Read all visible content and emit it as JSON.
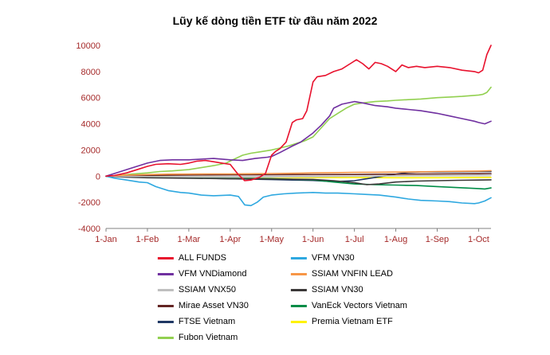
{
  "chart_data": {
    "type": "line",
    "title": "Lũy kế dòng tiền ETF từ đầu năm 2022",
    "xlabel": "",
    "ylabel": "",
    "x_range": [
      0,
      9.3
    ],
    "ylim": [
      -4000,
      10000
    ],
    "y_ticks": [
      -4000,
      -2000,
      0,
      2000,
      4000,
      6000,
      8000,
      10000
    ],
    "x_tick_positions": [
      0,
      1,
      2,
      3,
      4,
      5,
      6,
      7,
      8,
      9
    ],
    "x_tick_labels": [
      "1-Jan",
      "1-Feb",
      "1-Mar",
      "1-Apr",
      "1-May",
      "1-Jun",
      "1-Jul",
      "1-Aug",
      "1-Sep",
      "1-Oct"
    ],
    "grid": false,
    "legend_position": "bottom",
    "series": [
      {
        "name": "ALL FUNDS",
        "color": "#E8112D",
        "points": [
          [
            0,
            0
          ],
          [
            0.2,
            50
          ],
          [
            0.5,
            250
          ],
          [
            0.8,
            550
          ],
          [
            1,
            750
          ],
          [
            1.2,
            900
          ],
          [
            1.5,
            950
          ],
          [
            1.8,
            900
          ],
          [
            2,
            1000
          ],
          [
            2.2,
            1150
          ],
          [
            2.4,
            1200
          ],
          [
            2.6,
            1100
          ],
          [
            2.8,
            1000
          ],
          [
            3,
            900
          ],
          [
            3.1,
            500
          ],
          [
            3.2,
            100
          ],
          [
            3.35,
            -350
          ],
          [
            3.5,
            -300
          ],
          [
            3.7,
            -100
          ],
          [
            3.85,
            200
          ],
          [
            4,
            1600
          ],
          [
            4.1,
            1900
          ],
          [
            4.2,
            2100
          ],
          [
            4.35,
            2600
          ],
          [
            4.5,
            4100
          ],
          [
            4.6,
            4300
          ],
          [
            4.75,
            4400
          ],
          [
            4.85,
            5000
          ],
          [
            5,
            7200
          ],
          [
            5.1,
            7600
          ],
          [
            5.3,
            7700
          ],
          [
            5.5,
            8000
          ],
          [
            5.7,
            8200
          ],
          [
            5.9,
            8600
          ],
          [
            6.05,
            8900
          ],
          [
            6.2,
            8600
          ],
          [
            6.35,
            8200
          ],
          [
            6.5,
            8700
          ],
          [
            6.65,
            8600
          ],
          [
            6.8,
            8400
          ],
          [
            7,
            8000
          ],
          [
            7.15,
            8500
          ],
          [
            7.3,
            8300
          ],
          [
            7.5,
            8400
          ],
          [
            7.7,
            8300
          ],
          [
            8,
            8400
          ],
          [
            8.3,
            8300
          ],
          [
            8.6,
            8100
          ],
          [
            8.9,
            8000
          ],
          [
            9,
            7900
          ],
          [
            9.1,
            8100
          ],
          [
            9.2,
            9300
          ],
          [
            9.3,
            10000
          ]
        ]
      },
      {
        "name": "VFM VN30",
        "color": "#2EA8E0",
        "points": [
          [
            0,
            0
          ],
          [
            0.2,
            -150
          ],
          [
            0.5,
            -300
          ],
          [
            0.8,
            -450
          ],
          [
            1,
            -500
          ],
          [
            1.2,
            -800
          ],
          [
            1.5,
            -1100
          ],
          [
            1.8,
            -1250
          ],
          [
            2,
            -1300
          ],
          [
            2.3,
            -1450
          ],
          [
            2.6,
            -1500
          ],
          [
            3,
            -1450
          ],
          [
            3.2,
            -1550
          ],
          [
            3.35,
            -2200
          ],
          [
            3.5,
            -2250
          ],
          [
            3.65,
            -2000
          ],
          [
            3.8,
            -1600
          ],
          [
            4,
            -1450
          ],
          [
            4.3,
            -1350
          ],
          [
            4.6,
            -1300
          ],
          [
            5,
            -1250
          ],
          [
            5.3,
            -1300
          ],
          [
            5.6,
            -1300
          ],
          [
            6,
            -1350
          ],
          [
            6.3,
            -1400
          ],
          [
            6.6,
            -1450
          ],
          [
            7,
            -1600
          ],
          [
            7.3,
            -1750
          ],
          [
            7.6,
            -1850
          ],
          [
            8,
            -1900
          ],
          [
            8.3,
            -1950
          ],
          [
            8.6,
            -2050
          ],
          [
            8.9,
            -2100
          ],
          [
            9,
            -2050
          ],
          [
            9.15,
            -1900
          ],
          [
            9.3,
            -1650
          ]
        ]
      },
      {
        "name": "VFM VNDiamond",
        "color": "#7030A0",
        "points": [
          [
            0,
            0
          ],
          [
            0.3,
            300
          ],
          [
            0.6,
            600
          ],
          [
            1,
            1000
          ],
          [
            1.3,
            1200
          ],
          [
            1.6,
            1250
          ],
          [
            2,
            1250
          ],
          [
            2.3,
            1300
          ],
          [
            2.6,
            1350
          ],
          [
            3,
            1250
          ],
          [
            3.3,
            1200
          ],
          [
            3.6,
            1350
          ],
          [
            3.9,
            1450
          ],
          [
            4,
            1500
          ],
          [
            4.2,
            1800
          ],
          [
            4.5,
            2300
          ],
          [
            4.7,
            2600
          ],
          [
            5,
            3300
          ],
          [
            5.2,
            3900
          ],
          [
            5.4,
            4600
          ],
          [
            5.5,
            5200
          ],
          [
            5.7,
            5500
          ],
          [
            6,
            5700
          ],
          [
            6.2,
            5600
          ],
          [
            6.5,
            5400
          ],
          [
            6.8,
            5300
          ],
          [
            7,
            5200
          ],
          [
            7.3,
            5100
          ],
          [
            7.6,
            5000
          ],
          [
            8,
            4800
          ],
          [
            8.3,
            4600
          ],
          [
            8.6,
            4400
          ],
          [
            8.9,
            4200
          ],
          [
            9,
            4100
          ],
          [
            9.15,
            4000
          ],
          [
            9.3,
            4200
          ]
        ]
      },
      {
        "name": "SSIAM VNFIN LEAD",
        "color": "#F79646",
        "points": [
          [
            0,
            0
          ],
          [
            0.5,
            80
          ],
          [
            1,
            120
          ],
          [
            1.5,
            150
          ],
          [
            2,
            160
          ],
          [
            2.5,
            170
          ],
          [
            3,
            170
          ],
          [
            3.5,
            180
          ],
          [
            4,
            200
          ],
          [
            4.5,
            220
          ],
          [
            5,
            250
          ],
          [
            5.5,
            270
          ],
          [
            6,
            290
          ],
          [
            6.5,
            300
          ],
          [
            7,
            310
          ],
          [
            7.5,
            330
          ],
          [
            8,
            350
          ],
          [
            8.5,
            370
          ],
          [
            9,
            390
          ],
          [
            9.3,
            420
          ]
        ]
      },
      {
        "name": "SSIAM VNX50",
        "color": "#BFBFBF",
        "points": [
          [
            0,
            0
          ],
          [
            1,
            -30
          ],
          [
            2,
            -60
          ],
          [
            3,
            -80
          ],
          [
            4,
            -70
          ],
          [
            5,
            -40
          ],
          [
            6,
            -10
          ],
          [
            7,
            30
          ],
          [
            8,
            60
          ],
          [
            9,
            90
          ],
          [
            9.3,
            100
          ]
        ]
      },
      {
        "name": "SSIAM VN30",
        "color": "#3B3838",
        "points": [
          [
            0,
            0
          ],
          [
            0.5,
            -80
          ],
          [
            1,
            -120
          ],
          [
            2,
            -160
          ],
          [
            3,
            -200
          ],
          [
            4,
            -220
          ],
          [
            5,
            -250
          ],
          [
            5.5,
            -350
          ],
          [
            6,
            -500
          ],
          [
            6.3,
            -650
          ],
          [
            6.6,
            -600
          ],
          [
            7,
            -450
          ],
          [
            7.5,
            -380
          ],
          [
            8,
            -350
          ],
          [
            8.5,
            -320
          ],
          [
            9,
            -300
          ],
          [
            9.3,
            -280
          ]
        ]
      },
      {
        "name": "Mirae Asset VN30",
        "color": "#632423",
        "points": [
          [
            0,
            0
          ],
          [
            1,
            60
          ],
          [
            2,
            90
          ],
          [
            3,
            100
          ],
          [
            4,
            110
          ],
          [
            5,
            120
          ],
          [
            6,
            130
          ],
          [
            7,
            150
          ],
          [
            8,
            170
          ],
          [
            9,
            190
          ],
          [
            9.3,
            200
          ]
        ]
      },
      {
        "name": "VanEck Vectors Vietnam",
        "color": "#008C46",
        "points": [
          [
            0,
            0
          ],
          [
            1,
            -60
          ],
          [
            2,
            -120
          ],
          [
            3,
            -160
          ],
          [
            4,
            -200
          ],
          [
            5,
            -280
          ],
          [
            5.5,
            -450
          ],
          [
            6,
            -600
          ],
          [
            6.5,
            -650
          ],
          [
            7,
            -680
          ],
          [
            7.5,
            -720
          ],
          [
            8,
            -800
          ],
          [
            8.5,
            -880
          ],
          [
            9,
            -950
          ],
          [
            9.15,
            -980
          ],
          [
            9.3,
            -900
          ]
        ]
      },
      {
        "name": "FTSE Vietnam",
        "color": "#1F3864",
        "points": [
          [
            0,
            0
          ],
          [
            0.5,
            -50
          ],
          [
            1,
            -80
          ],
          [
            2,
            -130
          ],
          [
            3,
            -200
          ],
          [
            4,
            -260
          ],
          [
            4.5,
            -300
          ],
          [
            5,
            -330
          ],
          [
            5.5,
            -420
          ],
          [
            6,
            -350
          ],
          [
            6.3,
            -200
          ],
          [
            6.6,
            -50
          ],
          [
            7,
            150
          ],
          [
            7.3,
            280
          ],
          [
            7.6,
            320
          ],
          [
            8,
            330
          ],
          [
            8.5,
            340
          ],
          [
            9,
            350
          ],
          [
            9.3,
            360
          ]
        ]
      },
      {
        "name": "Premia Vietnam ETF",
        "color": "#FFF200",
        "points": [
          [
            0,
            0
          ],
          [
            1,
            -40
          ],
          [
            2,
            -70
          ],
          [
            3,
            -90
          ],
          [
            4,
            -100
          ],
          [
            5,
            -110
          ],
          [
            6,
            -110
          ],
          [
            7,
            -120
          ],
          [
            8,
            -120
          ],
          [
            9,
            -110
          ],
          [
            9.3,
            -100
          ]
        ]
      },
      {
        "name": "Fubon Vietnam",
        "color": "#92D050",
        "points": [
          [
            0,
            0
          ],
          [
            0.3,
            50
          ],
          [
            0.6,
            150
          ],
          [
            1,
            250
          ],
          [
            1.3,
            350
          ],
          [
            1.6,
            400
          ],
          [
            2,
            500
          ],
          [
            2.3,
            650
          ],
          [
            2.6,
            800
          ],
          [
            2.9,
            1000
          ],
          [
            3.1,
            1300
          ],
          [
            3.3,
            1600
          ],
          [
            3.5,
            1750
          ],
          [
            3.7,
            1850
          ],
          [
            4,
            2000
          ],
          [
            4.2,
            2150
          ],
          [
            4.4,
            2300
          ],
          [
            4.6,
            2500
          ],
          [
            4.8,
            2700
          ],
          [
            5,
            3000
          ],
          [
            5.2,
            3700
          ],
          [
            5.4,
            4400
          ],
          [
            5.6,
            4800
          ],
          [
            5.8,
            5200
          ],
          [
            6,
            5500
          ],
          [
            6.2,
            5600
          ],
          [
            6.5,
            5700
          ],
          [
            6.8,
            5750
          ],
          [
            7,
            5800
          ],
          [
            7.3,
            5850
          ],
          [
            7.6,
            5900
          ],
          [
            8,
            6000
          ],
          [
            8.3,
            6050
          ],
          [
            8.6,
            6100
          ],
          [
            9,
            6200
          ],
          [
            9.1,
            6250
          ],
          [
            9.2,
            6400
          ],
          [
            9.3,
            6800
          ]
        ]
      }
    ]
  },
  "legend": {
    "items": [
      {
        "label": "ALL FUNDS"
      },
      {
        "label": "VFM VN30"
      },
      {
        "label": "VFM VNDiamond"
      },
      {
        "label": "SSIAM VNFIN LEAD"
      },
      {
        "label": "SSIAM VNX50"
      },
      {
        "label": "SSIAM VN30"
      },
      {
        "label": "Mirae Asset VN30"
      },
      {
        "label": "VanEck Vectors Vietnam"
      },
      {
        "label": "FTSE Vietnam"
      },
      {
        "label": "Premia Vietnam ETF"
      },
      {
        "label": "Fubon Vietnam"
      }
    ]
  },
  "colors": {
    "axis_label": "#A52A2A",
    "axis_line": "#808080",
    "zero_line": "#C9C9C9",
    "title": "#000000",
    "background": "#FFFFFF"
  }
}
